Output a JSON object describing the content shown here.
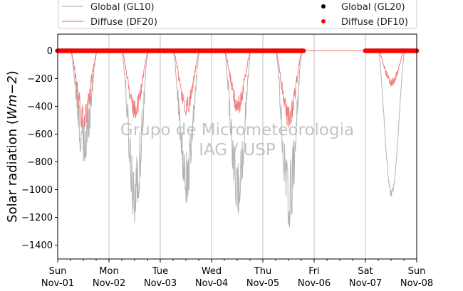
{
  "chart_data": {
    "type": "line",
    "ylabel": "Solar radiation (Wm−2)",
    "ylabel_parts": {
      "prefix": "Solar radiation (",
      "unit": "Wm",
      "exp": "−2",
      "suffix": ")"
    },
    "ylim": [
      -1500,
      120
    ],
    "xlim": [
      "2020-11-01",
      "2020-11-08"
    ],
    "yticks": [
      0,
      -200,
      -400,
      -600,
      -800,
      -1000,
      -1200,
      -1400
    ],
    "ytick_labels": [
      "0",
      "−200",
      "−400",
      "−600",
      "−800",
      "−1000",
      "−1200",
      "−1400"
    ],
    "xticks": [
      {
        "day": "Sun",
        "date": "Nov-01"
      },
      {
        "day": "Mon",
        "date": "Nov-02"
      },
      {
        "day": "Tue",
        "date": "Nov-03"
      },
      {
        "day": "Wed",
        "date": "Nov-04"
      },
      {
        "day": "Thu",
        "date": "Nov-05"
      },
      {
        "day": "Fri",
        "date": "Nov-06"
      },
      {
        "day": "Sat",
        "date": "Nov-07"
      },
      {
        "day": "Sun",
        "date": "Nov-08"
      }
    ],
    "grid": "vertical",
    "legend_placement": "top",
    "watermark": [
      "Grupo de Micrometeorologia",
      "IAG / USP"
    ],
    "series": [
      {
        "name": "Global (GL10)",
        "style": "line",
        "color": "#b3b3b3",
        "days": [
          {
            "day": "2020-11-01",
            "peak": -860,
            "noise": 0.45
          },
          {
            "day": "2020-11-02",
            "peak": -1250,
            "noise": 0.4
          },
          {
            "day": "2020-11-03",
            "peak": -1100,
            "noise": 0.35
          },
          {
            "day": "2020-11-04",
            "peak": -1200,
            "noise": 0.35
          },
          {
            "day": "2020-11-05",
            "peak": -1310,
            "noise": 0.4
          },
          {
            "day": "2020-11-07",
            "peak": -1050,
            "noise": 0.05
          }
        ]
      },
      {
        "name": "Diffuse (DF20)",
        "style": "line",
        "color": "#f08080",
        "days": [
          {
            "day": "2020-11-01",
            "peak": -600,
            "noise": 0.4
          },
          {
            "day": "2020-11-02",
            "peak": -500,
            "noise": 0.3
          },
          {
            "day": "2020-11-03",
            "peak": -470,
            "noise": 0.3
          },
          {
            "day": "2020-11-04",
            "peak": -460,
            "noise": 0.3
          },
          {
            "day": "2020-11-05",
            "peak": -560,
            "noise": 0.3
          },
          {
            "day": "2020-11-07",
            "peak": -260,
            "noise": 0.25
          }
        ]
      },
      {
        "name": "Global (GL20)",
        "style": "marker",
        "color": "#000000",
        "segments": [
          [
            "2020-11-01",
            "2020-11-05T19:00"
          ],
          [
            "2020-11-07",
            "2020-11-08"
          ]
        ],
        "value": 0
      },
      {
        "name": "Diffuse (DF10)",
        "style": "marker",
        "color": "#ff0000",
        "segments": [
          [
            "2020-11-01",
            "2020-11-05T19:00"
          ],
          [
            "2020-11-07",
            "2020-11-08"
          ]
        ],
        "value": 0
      }
    ]
  }
}
